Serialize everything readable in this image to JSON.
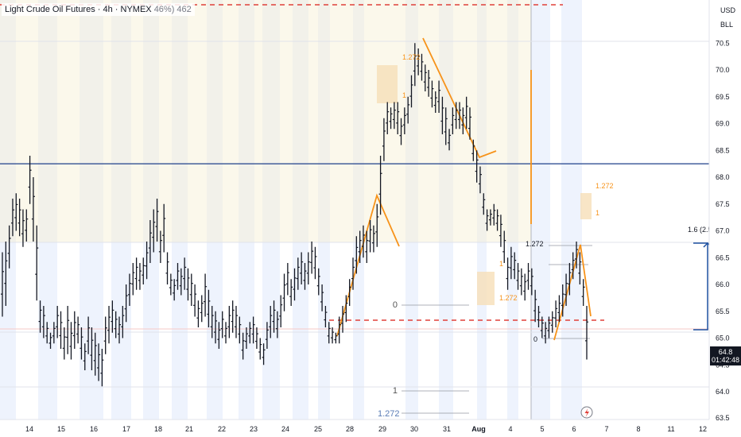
{
  "header": {
    "symbol": "Light Crude Oil Futures · 4h · NYMEX",
    "overlay": "46%) 462"
  },
  "price_scale": {
    "currency": "USD",
    "unit": "BLL",
    "last_price": "64.8",
    "countdown": "01:42:48"
  },
  "chart_data": {
    "type": "candlestick",
    "x_ticks": [
      "14",
      "15",
      "16",
      "17",
      "18",
      "21",
      "22",
      "23",
      "24",
      "25",
      "28",
      "29",
      "30",
      "31",
      "Aug",
      "4",
      "5",
      "6",
      "7",
      "8",
      "11",
      "12"
    ],
    "y_ticks": [
      "70.5",
      "70.0",
      "69.5",
      "69.0",
      "68.5",
      "68.0",
      "67.5",
      "67.0",
      "66.5",
      "66.0",
      "65.5",
      "65.0",
      "64.5",
      "64.0",
      "63.5"
    ],
    "ylim": [
      63.5,
      71.0
    ],
    "bars": [
      [
        66.6,
        65.4
      ],
      [
        66.8,
        65.6
      ],
      [
        67.1,
        66.3
      ],
      [
        67.6,
        66.9
      ],
      [
        67.7,
        67.0
      ],
      [
        67.6,
        66.9
      ],
      [
        67.4,
        66.7
      ],
      [
        67.4,
        66.8
      ],
      [
        68.4,
        67.5
      ],
      [
        68.0,
        66.8
      ],
      [
        67.1,
        65.7
      ],
      [
        65.7,
        65.1
      ],
      [
        65.6,
        65.0
      ],
      [
        65.3,
        64.9
      ],
      [
        65.1,
        64.8
      ],
      [
        65.3,
        64.9
      ],
      [
        65.6,
        65.0
      ],
      [
        65.5,
        64.8
      ],
      [
        65.2,
        64.6
      ],
      [
        65.6,
        64.7
      ],
      [
        65.3,
        64.6
      ],
      [
        65.5,
        64.8
      ],
      [
        65.4,
        64.9
      ],
      [
        65.2,
        64.6
      ],
      [
        64.9,
        64.4
      ],
      [
        65.4,
        64.7
      ],
      [
        65.2,
        64.4
      ],
      [
        65.1,
        64.3
      ],
      [
        64.9,
        64.2
      ],
      [
        64.8,
        64.1
      ],
      [
        65.4,
        64.7
      ],
      [
        65.6,
        64.9
      ],
      [
        65.7,
        65.1
      ],
      [
        65.5,
        65.0
      ],
      [
        65.4,
        64.9
      ],
      [
        65.6,
        65.0
      ],
      [
        66.0,
        65.3
      ],
      [
        66.2,
        65.6
      ],
      [
        66.4,
        65.8
      ],
      [
        66.5,
        65.9
      ],
      [
        66.4,
        65.9
      ],
      [
        66.5,
        66.0
      ],
      [
        66.8,
        66.1
      ],
      [
        67.2,
        66.4
      ],
      [
        67.4,
        66.6
      ],
      [
        67.6,
        66.8
      ],
      [
        67.0,
        66.4
      ],
      [
        67.5,
        66.6
      ],
      [
        66.6,
        66.0
      ],
      [
        66.2,
        65.8
      ],
      [
        66.1,
        65.7
      ],
      [
        66.4,
        65.9
      ],
      [
        66.3,
        65.8
      ],
      [
        66.5,
        65.9
      ],
      [
        66.3,
        65.7
      ],
      [
        66.2,
        65.6
      ],
      [
        66.0,
        65.4
      ],
      [
        65.7,
        65.2
      ],
      [
        65.8,
        65.3
      ],
      [
        66.2,
        65.4
      ],
      [
        65.9,
        65.2
      ],
      [
        65.6,
        65.0
      ],
      [
        65.5,
        64.9
      ],
      [
        65.3,
        64.8
      ],
      [
        65.5,
        65.0
      ],
      [
        65.3,
        64.9
      ],
      [
        65.6,
        65.0
      ],
      [
        65.7,
        65.1
      ],
      [
        65.6,
        65.0
      ],
      [
        65.4,
        64.9
      ],
      [
        65.1,
        64.6
      ],
      [
        65.2,
        64.8
      ],
      [
        65.3,
        64.9
      ],
      [
        65.4,
        64.9
      ],
      [
        65.2,
        64.8
      ],
      [
        65.0,
        64.6
      ],
      [
        64.9,
        64.5
      ],
      [
        65.3,
        64.8
      ],
      [
        65.6,
        65.0
      ],
      [
        65.7,
        65.1
      ],
      [
        65.5,
        65.0
      ],
      [
        65.8,
        65.2
      ],
      [
        66.2,
        65.5
      ],
      [
        66.4,
        65.8
      ],
      [
        66.1,
        65.6
      ],
      [
        66.3,
        65.7
      ],
      [
        66.5,
        65.9
      ],
      [
        66.6,
        66.0
      ],
      [
        66.4,
        65.9
      ],
      [
        66.6,
        66.0
      ],
      [
        66.8,
        66.2
      ],
      [
        66.7,
        66.1
      ],
      [
        66.3,
        65.8
      ],
      [
        66.0,
        65.5
      ],
      [
        65.6,
        65.2
      ],
      [
        65.3,
        64.9
      ],
      [
        65.2,
        64.9
      ],
      [
        65.1,
        64.9
      ],
      [
        65.4,
        64.9
      ],
      [
        65.6,
        65.1
      ],
      [
        65.8,
        65.3
      ],
      [
        66.1,
        65.6
      ],
      [
        66.5,
        65.9
      ],
      [
        66.9,
        66.2
      ],
      [
        67.0,
        66.4
      ],
      [
        67.1,
        66.5
      ],
      [
        67.0,
        66.4
      ],
      [
        67.2,
        66.6
      ],
      [
        67.1,
        66.6
      ],
      [
        67.5,
        66.7
      ],
      [
        68.4,
        67.3
      ],
      [
        69.1,
        68.3
      ],
      [
        69.4,
        68.8
      ],
      [
        69.3,
        68.9
      ],
      [
        69.4,
        68.9
      ],
      [
        69.4,
        68.8
      ],
      [
        69.1,
        68.6
      ],
      [
        69.3,
        68.8
      ],
      [
        69.5,
        69.0
      ],
      [
        69.9,
        69.3
      ],
      [
        70.5,
        69.7
      ],
      [
        70.4,
        69.9
      ],
      [
        70.3,
        69.8
      ],
      [
        70.1,
        69.6
      ],
      [
        70.0,
        69.5
      ],
      [
        69.8,
        69.3
      ],
      [
        69.6,
        69.2
      ],
      [
        69.8,
        69.2
      ],
      [
        69.5,
        68.8
      ],
      [
        69.3,
        68.6
      ],
      [
        68.9,
        68.5
      ],
      [
        69.3,
        68.8
      ],
      [
        69.4,
        68.9
      ],
      [
        69.4,
        68.9
      ],
      [
        69.3,
        68.8
      ],
      [
        69.5,
        68.9
      ],
      [
        69.3,
        68.7
      ],
      [
        68.7,
        68.3
      ],
      [
        68.5,
        67.9
      ],
      [
        68.2,
        67.7
      ],
      [
        67.7,
        67.3
      ],
      [
        67.4,
        67.0
      ],
      [
        67.4,
        67.1
      ],
      [
        67.5,
        67.1
      ],
      [
        67.4,
        67.0
      ],
      [
        67.3,
        66.7
      ],
      [
        67.0,
        66.4
      ],
      [
        66.5,
        65.9
      ],
      [
        66.7,
        66.1
      ],
      [
        66.6,
        66.1
      ],
      [
        66.4,
        65.9
      ],
      [
        66.3,
        65.8
      ],
      [
        66.2,
        65.7
      ],
      [
        66.4,
        65.9
      ],
      [
        66.3,
        65.8
      ],
      [
        65.9,
        65.3
      ],
      [
        65.6,
        65.2
      ],
      [
        65.4,
        65.0
      ],
      [
        65.3,
        64.9
      ],
      [
        65.4,
        65.0
      ],
      [
        65.5,
        65.1
      ],
      [
        65.7,
        65.2
      ],
      [
        65.8,
        65.3
      ],
      [
        66.0,
        65.4
      ],
      [
        66.2,
        65.6
      ],
      [
        66.4,
        65.8
      ],
      [
        66.6,
        66.1
      ],
      [
        66.8,
        66.3
      ],
      [
        66.6,
        66.0
      ],
      [
        66.1,
        65.6
      ],
      [
        65.6,
        64.6
      ]
    ],
    "levels": [
      {
        "name": "blue-resistance",
        "value": 68.25
      },
      {
        "name": "red-dashed-top",
        "value": 71.0
      },
      {
        "name": "red-dashed-mid",
        "value": 65.3
      }
    ],
    "fib_labels": [
      "1.272",
      "1",
      "1.272",
      "1",
      "1.272",
      "1",
      "1.272",
      "0",
      "1",
      "1.272",
      "1.272",
      "0",
      "1.6 (2.5"
    ]
  },
  "colors": {
    "up_down_bar": "#131722",
    "projection": "#f7931a",
    "resistance": "#1e3f8a",
    "dashed": "#e0403a",
    "fib_box": "#f6deb8",
    "measure": "#1e50a0",
    "grey_line": "#9598a1"
  }
}
